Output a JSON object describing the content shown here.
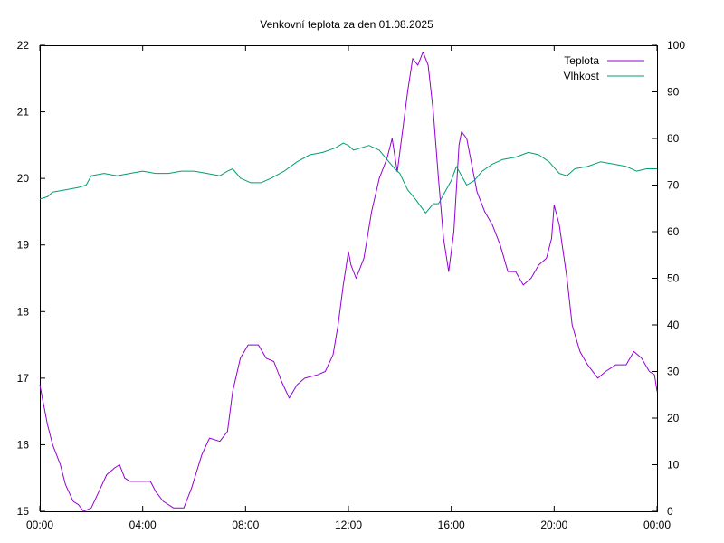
{
  "chart_data": {
    "type": "line",
    "title": "Venkovní teplota za den 01.08.2025",
    "xlabel": "",
    "ylabel": "",
    "y2label": "",
    "x_unit": "hours",
    "x_ticks": [
      {
        "v": 0,
        "label": "00:00"
      },
      {
        "v": 4,
        "label": "04:00"
      },
      {
        "v": 8,
        "label": "08:00"
      },
      {
        "v": 12,
        "label": "12:00"
      },
      {
        "v": 16,
        "label": "16:00"
      },
      {
        "v": 20,
        "label": "20:00"
      },
      {
        "v": 24,
        "label": "00:00"
      }
    ],
    "xlim": [
      0,
      24
    ],
    "ylim": [
      15,
      22
    ],
    "y_ticks": [
      "15",
      "16",
      "17",
      "18",
      "19",
      "20",
      "21",
      "22"
    ],
    "y2lim": [
      0,
      100
    ],
    "y2_ticks": [
      "0",
      "10",
      "20",
      "30",
      "40",
      "50",
      "60",
      "70",
      "80",
      "90",
      "100"
    ],
    "grid": false,
    "legend_position": "top-right",
    "series": [
      {
        "name": "Teplota",
        "axis": "left",
        "color": "#9400d3",
        "points": [
          [
            0,
            16.9
          ],
          [
            0.1,
            16.7
          ],
          [
            0.3,
            16.3
          ],
          [
            0.5,
            16.0
          ],
          [
            0.8,
            15.7
          ],
          [
            1.0,
            15.4
          ],
          [
            1.3,
            15.15
          ],
          [
            1.5,
            15.1
          ],
          [
            1.7,
            15.0
          ],
          [
            2.0,
            15.05
          ],
          [
            2.3,
            15.3
          ],
          [
            2.6,
            15.55
          ],
          [
            2.9,
            15.65
          ],
          [
            3.1,
            15.7
          ],
          [
            3.3,
            15.5
          ],
          [
            3.5,
            15.45
          ],
          [
            3.8,
            15.45
          ],
          [
            4.3,
            15.45
          ],
          [
            4.5,
            15.3
          ],
          [
            4.8,
            15.15
          ],
          [
            5.2,
            15.05
          ],
          [
            5.6,
            15.05
          ],
          [
            5.9,
            15.35
          ],
          [
            6.3,
            15.85
          ],
          [
            6.6,
            16.1
          ],
          [
            7.0,
            16.05
          ],
          [
            7.3,
            16.2
          ],
          [
            7.5,
            16.8
          ],
          [
            7.8,
            17.3
          ],
          [
            8.1,
            17.5
          ],
          [
            8.5,
            17.5
          ],
          [
            8.8,
            17.3
          ],
          [
            9.1,
            17.25
          ],
          [
            9.4,
            16.95
          ],
          [
            9.7,
            16.7
          ],
          [
            10.0,
            16.9
          ],
          [
            10.3,
            17.0
          ],
          [
            10.8,
            17.05
          ],
          [
            11.1,
            17.1
          ],
          [
            11.4,
            17.35
          ],
          [
            11.6,
            17.8
          ],
          [
            11.8,
            18.4
          ],
          [
            12.0,
            18.9
          ],
          [
            12.1,
            18.7
          ],
          [
            12.3,
            18.5
          ],
          [
            12.6,
            18.8
          ],
          [
            12.9,
            19.5
          ],
          [
            13.2,
            20.0
          ],
          [
            13.5,
            20.3
          ],
          [
            13.7,
            20.6
          ],
          [
            13.9,
            20.1
          ],
          [
            14.1,
            20.7
          ],
          [
            14.3,
            21.3
          ],
          [
            14.5,
            21.8
          ],
          [
            14.7,
            21.7
          ],
          [
            14.9,
            21.9
          ],
          [
            15.1,
            21.7
          ],
          [
            15.3,
            21.0
          ],
          [
            15.5,
            20.0
          ],
          [
            15.7,
            19.1
          ],
          [
            15.9,
            18.6
          ],
          [
            16.1,
            19.2
          ],
          [
            16.3,
            20.5
          ],
          [
            16.4,
            20.7
          ],
          [
            16.6,
            20.6
          ],
          [
            16.8,
            20.2
          ],
          [
            17.0,
            19.8
          ],
          [
            17.3,
            19.5
          ],
          [
            17.6,
            19.3
          ],
          [
            17.9,
            19.0
          ],
          [
            18.2,
            18.6
          ],
          [
            18.5,
            18.6
          ],
          [
            18.8,
            18.4
          ],
          [
            19.1,
            18.5
          ],
          [
            19.4,
            18.7
          ],
          [
            19.7,
            18.8
          ],
          [
            19.9,
            19.1
          ],
          [
            20.0,
            19.6
          ],
          [
            20.2,
            19.3
          ],
          [
            20.5,
            18.5
          ],
          [
            20.7,
            17.8
          ],
          [
            21.0,
            17.4
          ],
          [
            21.3,
            17.2
          ],
          [
            21.7,
            17.0
          ],
          [
            22.0,
            17.1
          ],
          [
            22.4,
            17.2
          ],
          [
            22.8,
            17.2
          ],
          [
            23.1,
            17.4
          ],
          [
            23.4,
            17.3
          ],
          [
            23.7,
            17.1
          ],
          [
            23.9,
            17.05
          ],
          [
            24.0,
            16.8
          ]
        ]
      },
      {
        "name": "Vlhkost",
        "axis": "right",
        "color": "#009e73",
        "points": [
          [
            0,
            67
          ],
          [
            0.3,
            67.5
          ],
          [
            0.5,
            68.5
          ],
          [
            1.0,
            69
          ],
          [
            1.5,
            69.5
          ],
          [
            1.8,
            70
          ],
          [
            2.0,
            72
          ],
          [
            2.5,
            72.5
          ],
          [
            3.0,
            72
          ],
          [
            3.5,
            72.5
          ],
          [
            4.0,
            73
          ],
          [
            4.5,
            72.5
          ],
          [
            5.0,
            72.5
          ],
          [
            5.5,
            73
          ],
          [
            6.0,
            73
          ],
          [
            6.5,
            72.5
          ],
          [
            7.0,
            72
          ],
          [
            7.3,
            73
          ],
          [
            7.5,
            73.5
          ],
          [
            7.8,
            71.5
          ],
          [
            8.2,
            70.5
          ],
          [
            8.6,
            70.5
          ],
          [
            9.0,
            71.5
          ],
          [
            9.5,
            73
          ],
          [
            10.0,
            75
          ],
          [
            10.5,
            76.5
          ],
          [
            11.0,
            77
          ],
          [
            11.5,
            78
          ],
          [
            11.8,
            79
          ],
          [
            12.0,
            78.5
          ],
          [
            12.2,
            77.5
          ],
          [
            12.5,
            78
          ],
          [
            12.8,
            78.5
          ],
          [
            13.2,
            77.5
          ],
          [
            13.5,
            75.5
          ],
          [
            13.8,
            73.5
          ],
          [
            14.0,
            72.5
          ],
          [
            14.3,
            69
          ],
          [
            14.6,
            67
          ],
          [
            15.0,
            64
          ],
          [
            15.3,
            66
          ],
          [
            15.5,
            66
          ],
          [
            15.8,
            69
          ],
          [
            16.0,
            71
          ],
          [
            16.2,
            74
          ],
          [
            16.4,
            72
          ],
          [
            16.6,
            70
          ],
          [
            16.9,
            71
          ],
          [
            17.2,
            73
          ],
          [
            17.6,
            74.5
          ],
          [
            18.0,
            75.5
          ],
          [
            18.5,
            76
          ],
          [
            19.0,
            77
          ],
          [
            19.4,
            76.5
          ],
          [
            19.8,
            75
          ],
          [
            20.2,
            72.5
          ],
          [
            20.5,
            72
          ],
          [
            20.8,
            73.5
          ],
          [
            21.3,
            74
          ],
          [
            21.8,
            75
          ],
          [
            22.3,
            74.5
          ],
          [
            22.8,
            74
          ],
          [
            23.2,
            73
          ],
          [
            23.6,
            73.5
          ],
          [
            24.0,
            73.5
          ]
        ]
      }
    ]
  }
}
